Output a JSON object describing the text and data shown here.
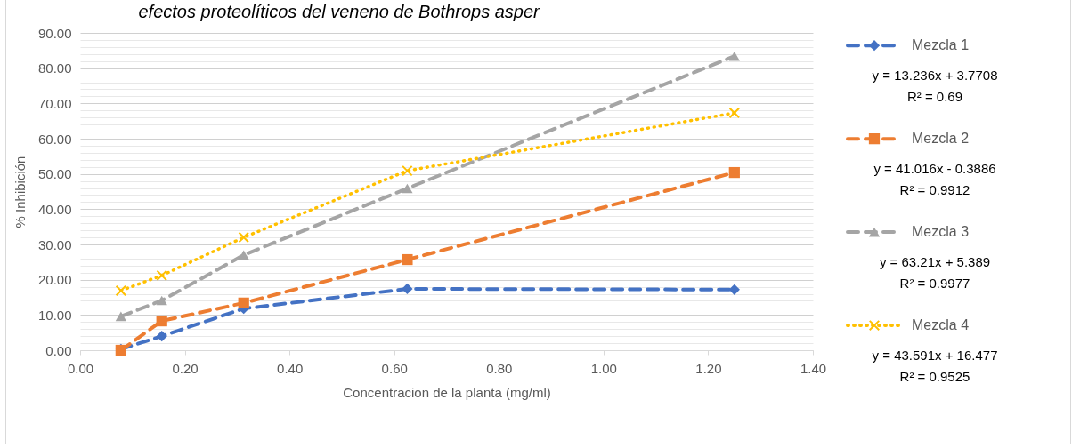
{
  "chart_data": {
    "type": "line",
    "title": "efectos proteolíticos del veneno de Bothrops asper",
    "xlabel": "Concentracion de la planta (mg/ml)",
    "ylabel": "% Inhibición",
    "x": [
      0.078,
      0.156,
      0.3125,
      0.625,
      1.25
    ],
    "series": [
      {
        "name": "Mezcla 1",
        "color": "#4472c4",
        "marker": "diamond",
        "line_style": "dashed",
        "values": [
          0.3,
          4.0,
          11.8,
          17.4,
          17.2
        ]
      },
      {
        "name": "Mezcla 2",
        "color": "#ed7d31",
        "marker": "square",
        "line_style": "dashed",
        "values": [
          0,
          8.3,
          13.4,
          25.7,
          50.4
        ]
      },
      {
        "name": "Mezcla 3",
        "color": "#a5a5a5",
        "marker": "triangle",
        "line_style": "dashed",
        "values": [
          9.6,
          14.1,
          27.0,
          45.9,
          83.4
        ]
      },
      {
        "name": "Mezcla 4",
        "color": "#ffc000",
        "marker": "cross",
        "line_style": "dotted",
        "values": [
          16.9,
          21.2,
          32.0,
          50.9,
          67.3
        ]
      }
    ],
    "xlim": [
      0,
      1.4
    ],
    "xticks": [
      {
        "value": 0,
        "label": "0.00"
      },
      {
        "value": 0.2,
        "label": "0.20"
      },
      {
        "value": 0.4,
        "label": "0.40"
      },
      {
        "value": 0.6,
        "label": "0.60"
      },
      {
        "value": 0.8,
        "label": "0.80"
      },
      {
        "value": 1,
        "label": "1.00"
      },
      {
        "value": 1.2,
        "label": "1.20"
      },
      {
        "value": 1.4,
        "label": "1.40"
      }
    ],
    "ylim": [
      0,
      90
    ],
    "yticks": [
      {
        "value": 0,
        "label": "0.00"
      },
      {
        "value": 2,
        "label": null
      },
      {
        "value": 4,
        "label": null
      },
      {
        "value": 6,
        "label": null
      },
      {
        "value": 8,
        "label": null
      },
      {
        "value": 10,
        "label": "10.00"
      },
      {
        "value": 12,
        "label": null
      },
      {
        "value": 14,
        "label": null
      },
      {
        "value": 16,
        "label": null
      },
      {
        "value": 18,
        "label": null
      },
      {
        "value": 20,
        "label": "20.00"
      },
      {
        "value": 22,
        "label": null
      },
      {
        "value": 24,
        "label": null
      },
      {
        "value": 26,
        "label": null
      },
      {
        "value": 28,
        "label": null
      },
      {
        "value": 30,
        "label": "30.00"
      },
      {
        "value": 32,
        "label": null
      },
      {
        "value": 34,
        "label": null
      },
      {
        "value": 36,
        "label": null
      },
      {
        "value": 38,
        "label": null
      },
      {
        "value": 40,
        "label": "40.00"
      },
      {
        "value": 42,
        "label": null
      },
      {
        "value": 44,
        "label": null
      },
      {
        "value": 46,
        "label": null
      },
      {
        "value": 48,
        "label": null
      },
      {
        "value": 50,
        "label": "50.00"
      },
      {
        "value": 52,
        "label": null
      },
      {
        "value": 54,
        "label": null
      },
      {
        "value": 56,
        "label": null
      },
      {
        "value": 58,
        "label": null
      },
      {
        "value": 60,
        "label": "60.00"
      },
      {
        "value": 62,
        "label": null
      },
      {
        "value": 64,
        "label": null
      },
      {
        "value": 66,
        "label": null
      },
      {
        "value": 68,
        "label": null
      },
      {
        "value": 70,
        "label": "70.00"
      },
      {
        "value": 72,
        "label": null
      },
      {
        "value": 74,
        "label": null
      },
      {
        "value": 76,
        "label": null
      },
      {
        "value": 78,
        "label": null
      },
      {
        "value": 80,
        "label": "80.00"
      },
      {
        "value": 82,
        "label": null
      },
      {
        "value": 84,
        "label": null
      },
      {
        "value": 86,
        "label": null
      },
      {
        "value": 88,
        "label": null
      },
      {
        "value": 90,
        "label": "90.00"
      }
    ],
    "grid": "y",
    "legend": "right",
    "annotations": [
      "y = 13.236x + 3.7708",
      "R² = 0.69",
      "y = 41.016x - 0.3886",
      "R² = 0.9912",
      "y = 63.21x + 5.389",
      "R² = 0.9977",
      "y = 43.591x + 16.477",
      "R² = 0.9525"
    ]
  }
}
